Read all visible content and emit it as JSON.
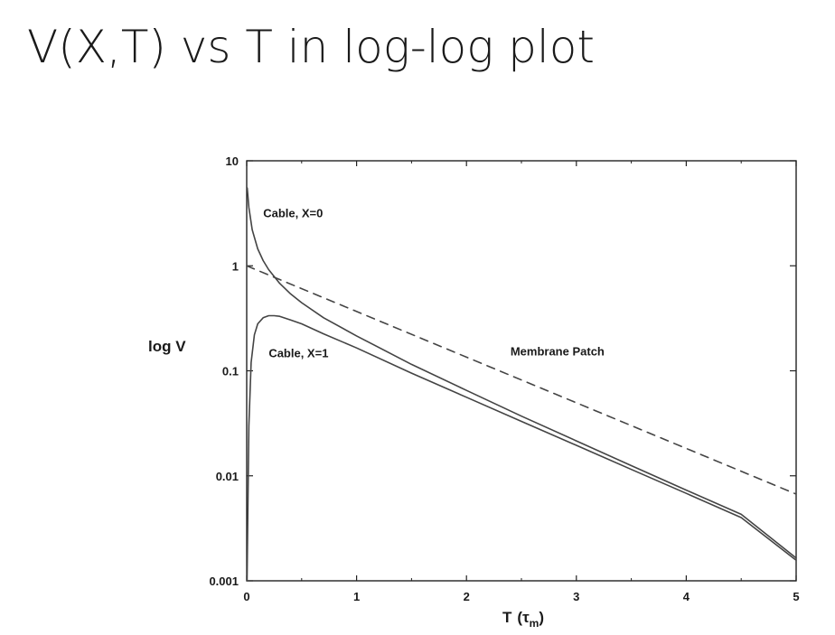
{
  "slide": {
    "title": "V(X,T) vs T in log-log plot"
  },
  "chart_data": {
    "type": "line",
    "xlabel": "T",
    "xlabel_unit": "τ",
    "xlabel_unit_sub": "m",
    "ylabel": "log V",
    "xlim": [
      0,
      5
    ],
    "ylim": [
      0.001,
      10
    ],
    "y_scale": "log",
    "x_ticks": [
      {
        "value": 0,
        "label": "0"
      },
      {
        "value": 1,
        "label": "1"
      },
      {
        "value": 2,
        "label": "2"
      },
      {
        "value": 3,
        "label": "3"
      },
      {
        "value": 4,
        "label": "4"
      },
      {
        "value": 5,
        "label": "5"
      }
    ],
    "y_ticks": [
      {
        "value": 10,
        "label": "10"
      },
      {
        "value": 1,
        "label": "1"
      },
      {
        "value": 0.1,
        "label": "0.1"
      },
      {
        "value": 0.01,
        "label": "0.01"
      },
      {
        "value": 0.001,
        "label": "0.001"
      }
    ],
    "grid": false,
    "series": [
      {
        "label": "Cable, X=0",
        "style": "solid",
        "label_at": [
          0.15,
          2.9
        ],
        "points": [
          [
            0.005,
            5.5
          ],
          [
            0.02,
            3.6
          ],
          [
            0.05,
            2.2
          ],
          [
            0.1,
            1.45
          ],
          [
            0.15,
            1.12
          ],
          [
            0.2,
            0.92
          ],
          [
            0.3,
            0.68
          ],
          [
            0.4,
            0.54
          ],
          [
            0.5,
            0.445
          ],
          [
            0.7,
            0.32
          ],
          [
            1.0,
            0.215
          ],
          [
            1.5,
            0.115
          ],
          [
            2.0,
            0.065
          ],
          [
            2.5,
            0.037
          ],
          [
            3.0,
            0.0215
          ],
          [
            3.5,
            0.0125
          ],
          [
            4.0,
            0.0073
          ],
          [
            4.5,
            0.0043
          ],
          [
            5.0,
            0.00165
          ]
        ]
      },
      {
        "label": "Cable, X=1",
        "style": "solid",
        "label_at": [
          0.2,
          0.135
        ],
        "points": [
          [
            0.003,
            0.001
          ],
          [
            0.01,
            0.004
          ],
          [
            0.02,
            0.03
          ],
          [
            0.04,
            0.12
          ],
          [
            0.07,
            0.22
          ],
          [
            0.1,
            0.28
          ],
          [
            0.15,
            0.32
          ],
          [
            0.2,
            0.335
          ],
          [
            0.25,
            0.335
          ],
          [
            0.3,
            0.33
          ],
          [
            0.4,
            0.305
          ],
          [
            0.5,
            0.28
          ],
          [
            0.7,
            0.225
          ],
          [
            1.0,
            0.165
          ],
          [
            1.5,
            0.095
          ],
          [
            2.0,
            0.056
          ],
          [
            2.5,
            0.033
          ],
          [
            3.0,
            0.0195
          ],
          [
            3.5,
            0.0115
          ],
          [
            4.0,
            0.0068
          ],
          [
            4.5,
            0.004
          ],
          [
            5.0,
            0.00157
          ]
        ]
      },
      {
        "label": "Membrane Patch",
        "style": "dashed",
        "label_at": [
          2.4,
          0.14
        ],
        "points": [
          [
            0,
            1.0
          ],
          [
            5,
            0.0067
          ]
        ]
      }
    ]
  }
}
